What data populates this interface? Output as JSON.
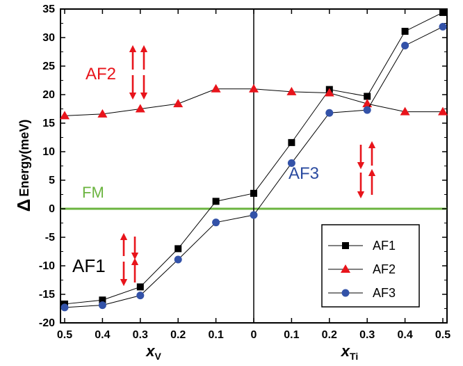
{
  "chart_data": {
    "type": "line",
    "categories": [
      "0.5",
      "0.4",
      "0.3",
      "0.2",
      "0.1",
      "0",
      "0.1",
      "0.2",
      "0.3",
      "0.4",
      "0.5"
    ],
    "x_left_label": "x",
    "x_left_sub": "V",
    "x_right_label": "x",
    "x_right_sub": "Ti",
    "ylabel_symbol": "Δ",
    "ylabel": "Energy(meV)",
    "ylim": [
      -20,
      35
    ],
    "yticks": [
      -20,
      -15,
      -10,
      -5,
      0,
      5,
      10,
      15,
      20,
      25,
      30,
      35
    ],
    "grid": false,
    "legend_position": "bottom-right",
    "series": [
      {
        "name": "AF1",
        "marker": "square",
        "color": "#000000",
        "values": [
          -16.7,
          -16.0,
          -13.7,
          -7.0,
          1.3,
          2.7,
          11.6,
          20.9,
          19.7,
          31.1,
          34.4
        ]
      },
      {
        "name": "AF2",
        "marker": "triangle",
        "color": "#e8141b",
        "values": [
          16.3,
          16.6,
          17.5,
          18.4,
          21.0,
          21.0,
          20.5,
          20.3,
          18.4,
          17.0,
          17.0
        ]
      },
      {
        "name": "AF3",
        "marker": "circle",
        "color": "#3352a8",
        "values": [
          -17.3,
          -16.9,
          -15.2,
          -8.9,
          -2.4,
          -1.1,
          8.0,
          16.8,
          17.3,
          28.6,
          31.9
        ]
      }
    ],
    "reference_line": {
      "label": "FM",
      "y": 0,
      "color": "#6bb43f"
    },
    "annotations": [
      {
        "text": "AF2",
        "color": "#e8141b"
      },
      {
        "text": "AF3",
        "color": "#2b4ba0"
      },
      {
        "text": "AF1",
        "color": "#000000"
      }
    ]
  }
}
